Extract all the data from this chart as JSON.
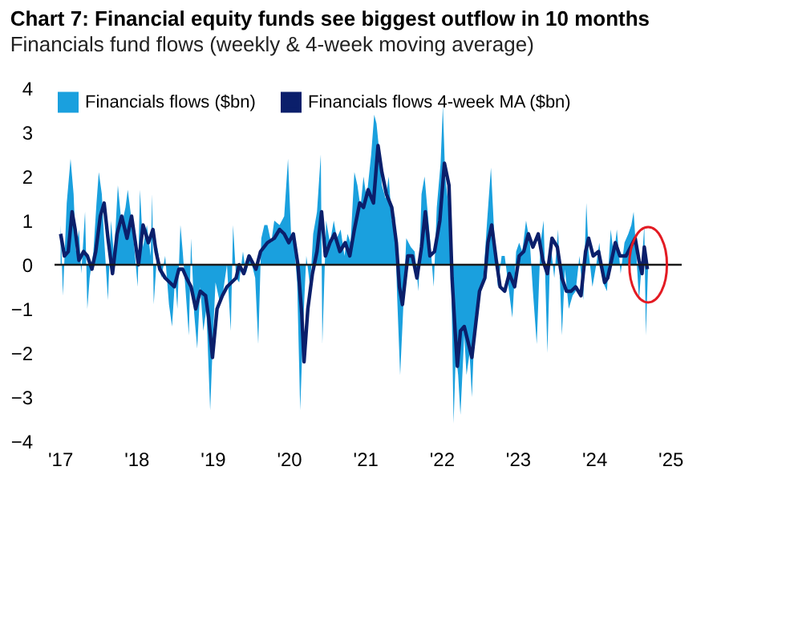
{
  "chart_data": {
    "type": "area",
    "title": "Chart 7: Financial equity funds see biggest outflow in 10 months",
    "subtitle": "Financials fund flows (weekly & 4-week moving average)",
    "xlim": [
      2016.93,
      2025.15
    ],
    "xticks": [
      {
        "value": 2017,
        "label": "'17"
      },
      {
        "value": 2018,
        "label": "'18"
      },
      {
        "value": 2019,
        "label": "'19"
      },
      {
        "value": 2020,
        "label": "'20"
      },
      {
        "value": 2021,
        "label": "'21"
      },
      {
        "value": 2022,
        "label": "'22"
      },
      {
        "value": 2023,
        "label": "'23"
      },
      {
        "value": 2024,
        "label": "'24"
      },
      {
        "value": 2025,
        "label": "'25"
      }
    ],
    "ylim": [
      -4,
      4
    ],
    "yticks": [
      -4,
      -3,
      -2,
      -1,
      0,
      1,
      2,
      3,
      4
    ],
    "grid": false,
    "legend": "top left",
    "ref_lines": [
      {
        "axis": "y",
        "value": 0,
        "color": "#1a1a1a"
      }
    ],
    "series": [
      {
        "name": "Financials flows ($bn)",
        "color": "#1aa0de",
        "x": [
          2017.01,
          2017.04,
          2017.09,
          2017.14,
          2017.18,
          2017.21,
          2017.25,
          2017.28,
          2017.33,
          2017.36,
          2017.39,
          2017.44,
          2017.48,
          2017.51,
          2017.55,
          2017.58,
          2017.63,
          2017.67,
          2017.71,
          2017.76,
          2017.81,
          2017.86,
          2017.89,
          2017.94,
          2017.98,
          2018.02,
          2018.05,
          2018.09,
          2018.14,
          2018.19,
          2018.21,
          2018.23,
          2018.28,
          2018.33,
          2018.38,
          2018.43,
          2018.47,
          2018.51,
          2018.54,
          2018.58,
          2018.61,
          2018.64,
          2018.69,
          2018.72,
          2018.76,
          2018.8,
          2018.84,
          2018.88,
          2018.92,
          2018.97,
          2019.01,
          2019.04,
          2019.09,
          2019.14,
          2019.19,
          2019.24,
          2019.27,
          2019.31,
          2019.35,
          2019.4,
          2019.44,
          2019.49,
          2019.56,
          2019.6,
          2019.64,
          2019.68,
          2019.72,
          2019.77,
          2019.81,
          2019.88,
          2019.94,
          2019.99,
          2020.03,
          2020.07,
          2020.11,
          2020.15,
          2020.19,
          2020.23,
          2020.28,
          2020.32,
          2020.37,
          2020.42,
          2020.44,
          2020.49,
          2020.54,
          2020.59,
          2020.63,
          2020.68,
          2020.73,
          2020.77,
          2020.81,
          2020.86,
          2020.9,
          2020.94,
          2020.98,
          2021.02,
          2021.08,
          2021.12,
          2021.15,
          2021.19,
          2021.22,
          2021.27,
          2021.31,
          2021.35,
          2021.39,
          2021.42,
          2021.46,
          2021.5,
          2021.54,
          2021.6,
          2021.65,
          2021.7,
          2021.74,
          2021.78,
          2021.82,
          2021.85,
          2021.9,
          2021.94,
          2021.99,
          2022.02,
          2022.05,
          2022.09,
          2022.13,
          2022.16,
          2022.19,
          2022.22,
          2022.25,
          2022.3,
          2022.33,
          2022.37,
          2022.4,
          2022.44,
          2022.49,
          2022.55,
          2022.6,
          2022.65,
          2022.69,
          2022.74,
          2022.79,
          2022.83,
          2022.88,
          2022.93,
          2022.98,
          2023.02,
          2023.06,
          2023.11,
          2023.16,
          2023.2,
          2023.25,
          2023.3,
          2023.34,
          2023.39,
          2023.43,
          2023.48,
          2023.53,
          2023.58,
          2023.62,
          2023.67,
          2023.72,
          2023.76,
          2023.81,
          2023.86,
          2023.9,
          2023.93,
          2023.98,
          2024.03,
          2024.07,
          2024.12,
          2024.17,
          2024.22,
          2024.26,
          2024.3,
          2024.35,
          2024.4,
          2024.45,
          2024.49,
          2024.52,
          2024.55,
          2024.59,
          2024.63,
          2024.66,
          2024.68,
          2024.71
        ],
        "values": [
          0.9,
          -0.7,
          1.4,
          2.4,
          1.6,
          0.3,
          0.8,
          -0.2,
          1.2,
          -1.0,
          -0.3,
          0.3,
          1.4,
          2.1,
          1.6,
          0.6,
          -0.8,
          1.0,
          0.2,
          1.8,
          0.9,
          1.3,
          1.7,
          1.0,
          0.3,
          -0.5,
          1.7,
          0.4,
          0.9,
          0.2,
          1.6,
          -0.9,
          0.4,
          -0.3,
          0.2,
          -0.9,
          -1.4,
          -0.3,
          -1.0,
          0.9,
          0.3,
          -0.4,
          -1.6,
          0.6,
          -1.1,
          -1.9,
          -0.5,
          -1.5,
          -1.0,
          -3.3,
          -1.5,
          -0.4,
          -0.8,
          -0.6,
          0.0,
          -1.5,
          0.9,
          -0.3,
          -0.4,
          0.3,
          -0.2,
          0.2,
          -0.3,
          -1.8,
          0.6,
          0.9,
          0.9,
          0.5,
          1.0,
          0.9,
          1.1,
          2.4,
          0.7,
          0.5,
          -0.4,
          -3.3,
          -1.3,
          0.2,
          -0.5,
          0.7,
          1.2,
          2.5,
          -1.8,
          1.0,
          0.5,
          1.0,
          0.6,
          0.8,
          0.2,
          0.7,
          0.5,
          2.1,
          1.8,
          1.3,
          2.0,
          1.5,
          2.5,
          3.4,
          3.2,
          2.5,
          1.8,
          1.5,
          2.0,
          1.0,
          1.1,
          -0.7,
          -2.5,
          -1.0,
          0.6,
          0.4,
          0.3,
          -0.6,
          1.6,
          2.0,
          1.2,
          0.6,
          -0.5,
          1.3,
          2.3,
          3.6,
          2.0,
          1.4,
          -0.3,
          -3.6,
          -2.0,
          -2.5,
          -3.4,
          -1.6,
          -2.5,
          -2.0,
          -3.0,
          -1.2,
          -0.7,
          -0.3,
          1.0,
          2.2,
          0.8,
          -0.5,
          0.2,
          0.2,
          -0.5,
          -1.2,
          0.3,
          0.5,
          0.3,
          1.0,
          0.5,
          -0.6,
          -1.8,
          0.5,
          1.0,
          -2.0,
          0.5,
          -0.3,
          0.8,
          -1.6,
          -0.1,
          -1.0,
          -0.7,
          -0.6,
          0.2,
          -0.8,
          1.4,
          0.3,
          -0.5,
          0.0,
          0.5,
          -0.4,
          -0.6,
          0.8,
          0.2,
          0.8,
          -0.2,
          0.5,
          0.7,
          0.9,
          1.2,
          0.4,
          -0.8,
          0.1,
          0.9,
          -1.6,
          0.0
        ]
      },
      {
        "name": "Financials flows 4-week MA ($bn)",
        "type": "line",
        "color": "#0b1f6b",
        "x": [
          2017.01,
          2017.06,
          2017.11,
          2017.16,
          2017.2,
          2017.25,
          2017.31,
          2017.36,
          2017.42,
          2017.47,
          2017.53,
          2017.58,
          2017.63,
          2017.69,
          2017.75,
          2017.81,
          2017.88,
          2017.94,
          2017.99,
          2018.03,
          2018.09,
          2018.16,
          2018.22,
          2018.26,
          2018.31,
          2018.38,
          2018.44,
          2018.5,
          2018.56,
          2018.61,
          2018.66,
          2018.72,
          2018.78,
          2018.84,
          2018.91,
          2018.95,
          2019.0,
          2019.06,
          2019.13,
          2019.19,
          2019.25,
          2019.31,
          2019.35,
          2019.41,
          2019.48,
          2019.57,
          2019.63,
          2019.72,
          2019.81,
          2019.88,
          2019.94,
          2020.0,
          2020.06,
          2020.12,
          2020.17,
          2020.2,
          2020.25,
          2020.31,
          2020.37,
          2020.43,
          2020.48,
          2020.54,
          2020.6,
          2020.67,
          2020.74,
          2020.8,
          2020.86,
          2020.93,
          2020.98,
          2021.04,
          2021.11,
          2021.17,
          2021.22,
          2021.28,
          2021.35,
          2021.41,
          2021.45,
          2021.49,
          2021.56,
          2021.62,
          2021.68,
          2021.74,
          2021.79,
          2021.85,
          2021.91,
          2021.98,
          2022.04,
          2022.1,
          2022.14,
          2022.18,
          2022.21,
          2022.25,
          2022.3,
          2022.4,
          2022.44,
          2022.5,
          2022.57,
          2022.61,
          2022.66,
          2022.72,
          2022.77,
          2022.83,
          2022.89,
          2022.96,
          2023.02,
          2023.08,
          2023.14,
          2023.2,
          2023.27,
          2023.33,
          2023.39,
          2023.45,
          2023.52,
          2023.58,
          2023.64,
          2023.7,
          2023.76,
          2023.83,
          2023.89,
          2023.93,
          2023.99,
          2024.06,
          2024.14,
          2024.18,
          2024.23,
          2024.28,
          2024.34,
          2024.42,
          2024.48,
          2024.54,
          2024.59,
          2024.63,
          2024.66,
          2024.7
        ],
        "values": [
          0.7,
          0.2,
          0.3,
          1.2,
          0.8,
          0.1,
          0.3,
          0.2,
          -0.1,
          0.3,
          1.1,
          1.4,
          0.6,
          -0.2,
          0.7,
          1.1,
          0.6,
          1.1,
          0.5,
          0.0,
          0.9,
          0.5,
          0.8,
          0.3,
          -0.1,
          -0.3,
          -0.4,
          -0.5,
          -0.1,
          -0.1,
          -0.3,
          -0.5,
          -1.0,
          -0.6,
          -0.7,
          -1.2,
          -2.1,
          -1.0,
          -0.7,
          -0.5,
          -0.4,
          -0.3,
          0.0,
          -0.2,
          0.2,
          -0.1,
          0.3,
          0.5,
          0.6,
          0.8,
          0.7,
          0.5,
          0.7,
          0.0,
          -1.1,
          -2.2,
          -1.0,
          -0.2,
          0.3,
          1.2,
          0.2,
          0.5,
          0.7,
          0.3,
          0.5,
          0.2,
          0.8,
          1.4,
          1.3,
          1.7,
          1.4,
          2.7,
          2.1,
          1.6,
          1.3,
          0.5,
          -0.5,
          -0.9,
          0.2,
          0.2,
          -0.3,
          0.4,
          1.2,
          0.2,
          0.3,
          1.0,
          2.3,
          1.8,
          -0.3,
          -1.5,
          -2.3,
          -1.5,
          -1.4,
          -2.1,
          -1.5,
          -0.6,
          -0.3,
          0.5,
          0.9,
          0.1,
          -0.5,
          -0.6,
          -0.2,
          -0.5,
          0.2,
          0.3,
          0.7,
          0.4,
          0.7,
          0.1,
          -0.2,
          0.6,
          0.4,
          -0.3,
          -0.6,
          -0.6,
          -0.5,
          -0.7,
          0.3,
          0.6,
          0.2,
          0.3,
          -0.4,
          -0.3,
          0.1,
          0.5,
          0.2,
          0.2,
          0.4,
          0.6,
          0.1,
          -0.2,
          0.4,
          -0.1
        ]
      }
    ]
  }
}
